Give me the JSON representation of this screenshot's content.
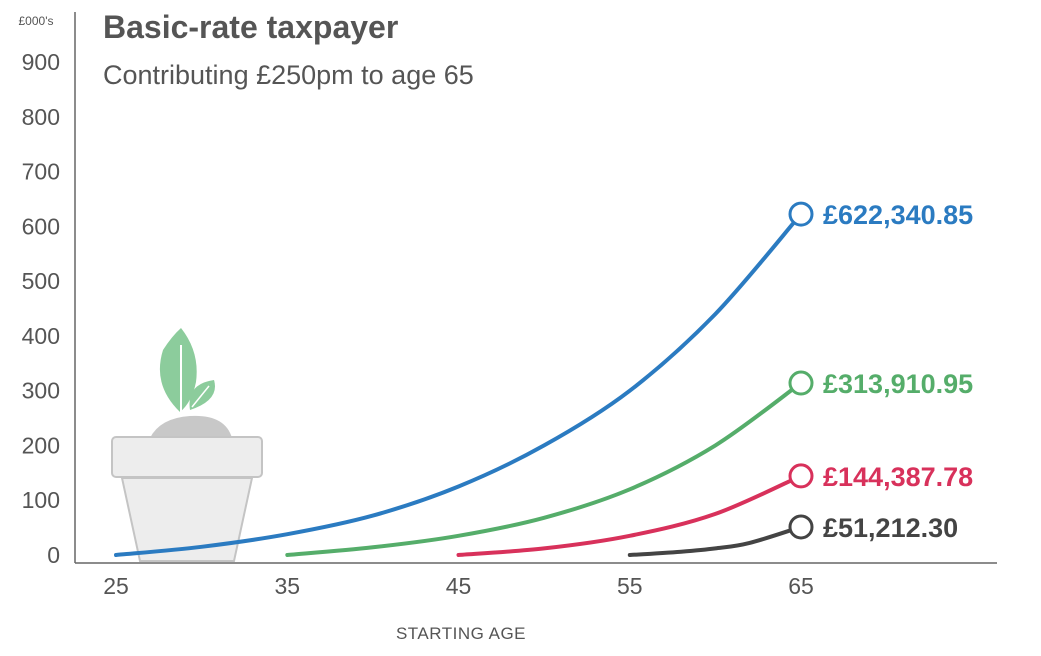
{
  "chart_data": {
    "type": "line",
    "title": "Basic-rate taxpayer",
    "subtitle": "Contributing £250pm to age 65",
    "unit_label": "£000's",
    "xlabel": "STARTING AGE",
    "ylabel": "",
    "x_ticks": [
      "25",
      "35",
      "45",
      "55",
      "65"
    ],
    "y_ticks": [
      "0",
      "100",
      "200",
      "300",
      "400",
      "500",
      "600",
      "700",
      "800",
      "900"
    ],
    "xlim": [
      25,
      65
    ],
    "ylim": [
      0,
      900
    ],
    "grid": false,
    "series": [
      {
        "start_age": 25,
        "color": "#2b7bc1",
        "end_label": "£622,340.85",
        "points": [
          [
            25,
            0
          ],
          [
            30,
            15
          ],
          [
            35,
            38
          ],
          [
            40,
            72
          ],
          [
            45,
            125
          ],
          [
            50,
            200
          ],
          [
            55,
            300
          ],
          [
            60,
            440
          ],
          [
            65,
            622.34
          ]
        ]
      },
      {
        "start_age": 35,
        "color": "#55ad6a",
        "end_label": "£313,910.95",
        "points": [
          [
            35,
            0
          ],
          [
            40,
            14
          ],
          [
            45,
            35
          ],
          [
            50,
            68
          ],
          [
            55,
            120
          ],
          [
            60,
            200
          ],
          [
            65,
            313.91
          ]
        ]
      },
      {
        "start_age": 45,
        "color": "#d8315b",
        "end_label": "£144,387.78",
        "points": [
          [
            45,
            0
          ],
          [
            50,
            12
          ],
          [
            55,
            35
          ],
          [
            60,
            75
          ],
          [
            65,
            144.39
          ]
        ]
      },
      {
        "start_age": 55,
        "color": "#444444",
        "end_label": "£51,212.30",
        "points": [
          [
            55,
            0
          ],
          [
            58,
            6
          ],
          [
            60,
            12
          ],
          [
            62,
            22
          ],
          [
            65,
            51.21
          ]
        ]
      }
    ]
  }
}
